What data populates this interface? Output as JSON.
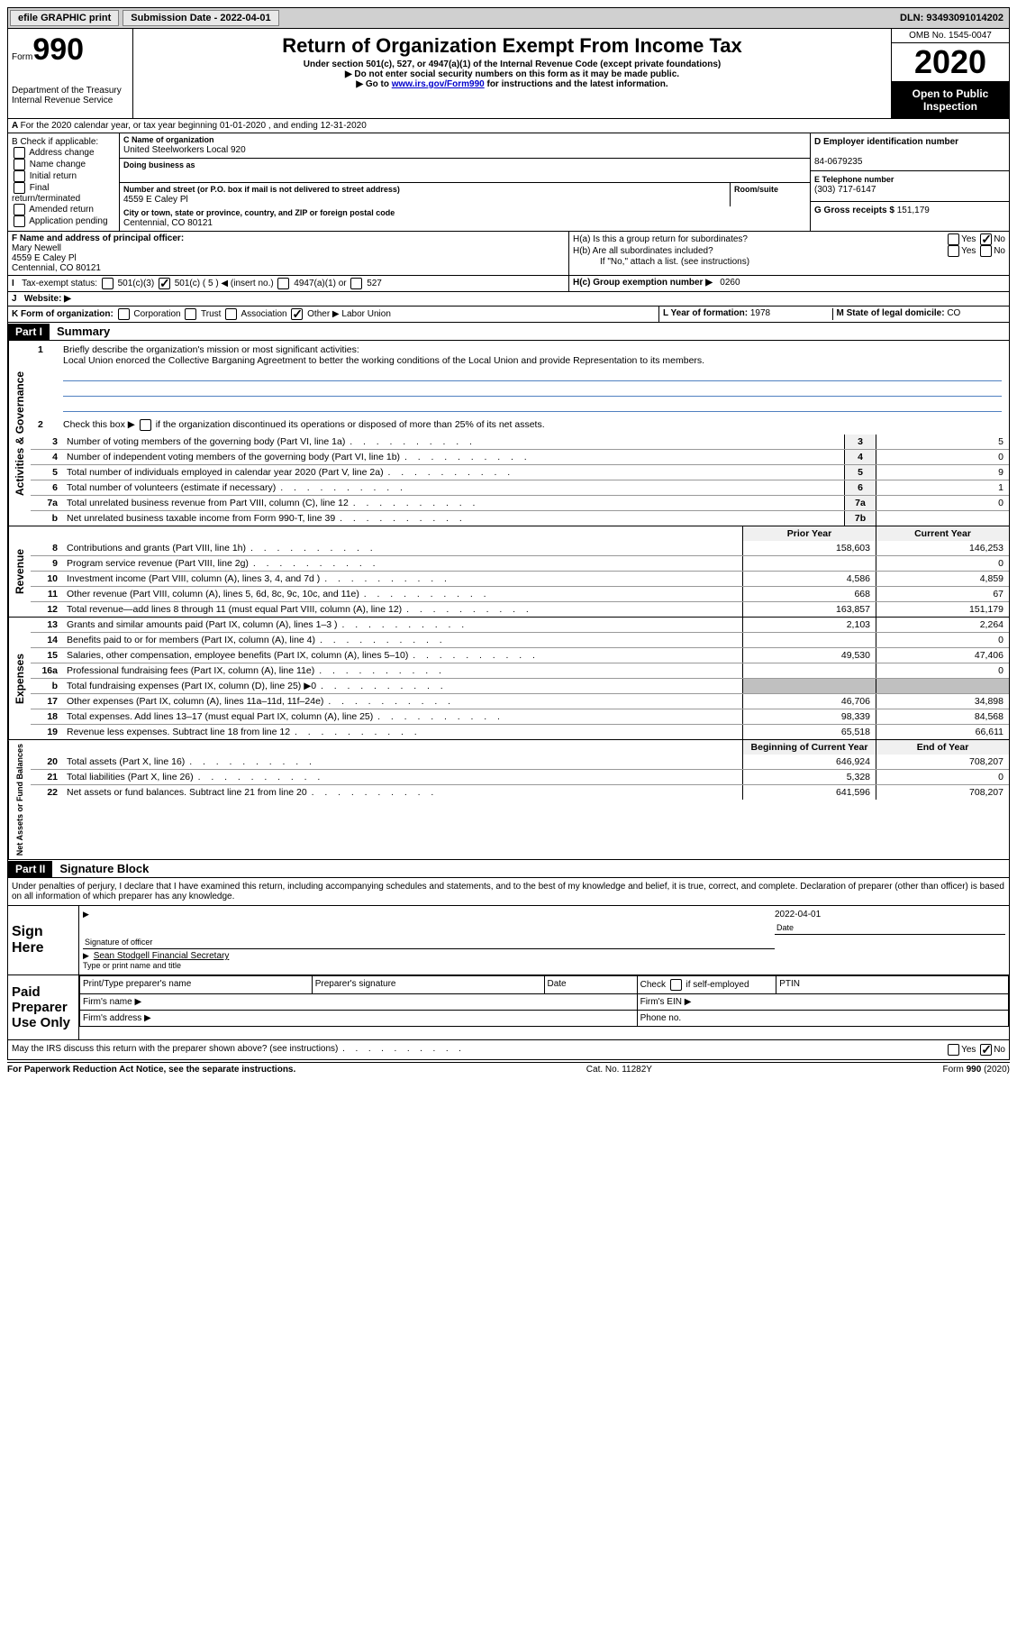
{
  "topbar": {
    "efile": "efile GRAPHIC print",
    "submission_label": "Submission Date - ",
    "submission_date": "2022-04-01",
    "dln_label": "DLN: ",
    "dln": "93493091014202"
  },
  "header": {
    "form_label": "Form",
    "form_no": "990",
    "dept1": "Department of the Treasury",
    "dept2": "Internal Revenue Service",
    "title": "Return of Organization Exempt From Income Tax",
    "subtitle1": "Under section 501(c), 527, or 4947(a)(1) of the Internal Revenue Code (except private foundations)",
    "subtitle2": "▶ Do not enter social security numbers on this form as it may be made public.",
    "subtitle3_pre": "▶ Go to ",
    "subtitle3_link": "www.irs.gov/Form990",
    "subtitle3_post": " for instructions and the latest information.",
    "omb": "OMB No. 1545-0047",
    "year": "2020",
    "inspect": "Open to Public Inspection"
  },
  "line_a": "For the 2020 calendar year, or tax year beginning 01-01-2020     , and ending 12-31-2020",
  "col_b": {
    "title": "B Check if applicable:",
    "opts": [
      "Address change",
      "Name change",
      "Initial return",
      "Final return/terminated",
      "Amended return",
      "Application pending"
    ]
  },
  "col_c": {
    "name_label": "C Name of organization",
    "name": "United Steelworkers Local 920",
    "dba_label": "Doing business as",
    "addr_label": "Number and street (or P.O. box if mail is not delivered to street address)",
    "room_label": "Room/suite",
    "addr": "4559 E Caley Pl",
    "city_label": "City or town, state or province, country, and ZIP or foreign postal code",
    "city": "Centennial, CO  80121"
  },
  "col_d": {
    "ein_label": "D Employer identification number",
    "ein": "84-0679235",
    "tel_label": "E Telephone number",
    "tel": "(303) 717-6147",
    "gross_label": "G Gross receipts $ ",
    "gross": "151,179"
  },
  "row_f": {
    "label": "F  Name and address of principal officer:",
    "name": "Mary Newell",
    "addr1": "4559 E Caley Pl",
    "addr2": "Centennial, CO  80121"
  },
  "row_h": {
    "ha": "H(a)  Is this a group return for subordinates?",
    "hb": "H(b)  Are all subordinates included?",
    "hb_note": "If \"No,\" attach a list. (see instructions)",
    "hc_label": "H(c)  Group exemption number ▶",
    "hc_val": "0260",
    "yes": "Yes",
    "no": "No"
  },
  "row_i": {
    "label": "Tax-exempt status:",
    "opt1": "501(c)(3)",
    "opt2": "501(c) ( 5 ) ◀ (insert no.)",
    "opt3": "4947(a)(1) or",
    "opt4": "527"
  },
  "row_j": {
    "label": "Website: ▶"
  },
  "row_k": {
    "label": "K Form of organization:",
    "opts": [
      "Corporation",
      "Trust",
      "Association",
      "Other ▶"
    ],
    "other_val": "Labor Union",
    "l_label": "L Year of formation: ",
    "l_val": "1978",
    "m_label": "M State of legal domicile: ",
    "m_val": "CO"
  },
  "part1": {
    "header": "Part I",
    "title": "Summary",
    "line1_label": "Briefly describe the organization's mission or most significant activities:",
    "mission": "Local Union enorced the Collective Barganing Agreetment to better the working conditions of the Local Union and provide Representation to its members.",
    "line2": "Check this box ▶         if the organization discontinued its operations or disposed of more than 25% of its net assets.",
    "governance_label": "Activities & Governance",
    "revenue_label": "Revenue",
    "expenses_label": "Expenses",
    "netassets_label": "Net Assets or Fund Balances",
    "prior_year": "Prior Year",
    "current_year": "Current Year",
    "begin_year": "Beginning of Current Year",
    "end_year": "End of Year",
    "lines_gov": [
      {
        "n": "3",
        "d": "Number of voting members of the governing body (Part VI, line 1a)",
        "box": "3",
        "v": "5"
      },
      {
        "n": "4",
        "d": "Number of independent voting members of the governing body (Part VI, line 1b)",
        "box": "4",
        "v": "0"
      },
      {
        "n": "5",
        "d": "Total number of individuals employed in calendar year 2020 (Part V, line 2a)",
        "box": "5",
        "v": "9"
      },
      {
        "n": "6",
        "d": "Total number of volunteers (estimate if necessary)",
        "box": "6",
        "v": "1"
      },
      {
        "n": "7a",
        "d": "Total unrelated business revenue from Part VIII, column (C), line 12",
        "box": "7a",
        "v": "0"
      },
      {
        "n": "b",
        "d": "Net unrelated business taxable income from Form 990-T, line 39",
        "box": "7b",
        "v": ""
      }
    ],
    "lines_rev": [
      {
        "n": "8",
        "d": "Contributions and grants (Part VIII, line 1h)",
        "p": "158,603",
        "c": "146,253"
      },
      {
        "n": "9",
        "d": "Program service revenue (Part VIII, line 2g)",
        "p": "",
        "c": "0"
      },
      {
        "n": "10",
        "d": "Investment income (Part VIII, column (A), lines 3, 4, and 7d )",
        "p": "4,586",
        "c": "4,859"
      },
      {
        "n": "11",
        "d": "Other revenue (Part VIII, column (A), lines 5, 6d, 8c, 9c, 10c, and 11e)",
        "p": "668",
        "c": "67"
      },
      {
        "n": "12",
        "d": "Total revenue—add lines 8 through 11 (must equal Part VIII, column (A), line 12)",
        "p": "163,857",
        "c": "151,179"
      }
    ],
    "lines_exp": [
      {
        "n": "13",
        "d": "Grants and similar amounts paid (Part IX, column (A), lines 1–3 )",
        "p": "2,103",
        "c": "2,264"
      },
      {
        "n": "14",
        "d": "Benefits paid to or for members (Part IX, column (A), line 4)",
        "p": "",
        "c": "0"
      },
      {
        "n": "15",
        "d": "Salaries, other compensation, employee benefits (Part IX, column (A), lines 5–10)",
        "p": "49,530",
        "c": "47,406"
      },
      {
        "n": "16a",
        "d": "Professional fundraising fees (Part IX, column (A), line 11e)",
        "p": "",
        "c": "0"
      },
      {
        "n": "b",
        "d": "Total fundraising expenses (Part IX, column (D), line 25) ▶0",
        "p": "shaded",
        "c": "shaded"
      },
      {
        "n": "17",
        "d": "Other expenses (Part IX, column (A), lines 11a–11d, 11f–24e)",
        "p": "46,706",
        "c": "34,898"
      },
      {
        "n": "18",
        "d": "Total expenses. Add lines 13–17 (must equal Part IX, column (A), line 25)",
        "p": "98,339",
        "c": "84,568"
      },
      {
        "n": "19",
        "d": "Revenue less expenses. Subtract line 18 from line 12",
        "p": "65,518",
        "c": "66,611"
      }
    ],
    "lines_net": [
      {
        "n": "20",
        "d": "Total assets (Part X, line 16)",
        "p": "646,924",
        "c": "708,207"
      },
      {
        "n": "21",
        "d": "Total liabilities (Part X, line 26)",
        "p": "5,328",
        "c": "0"
      },
      {
        "n": "22",
        "d": "Net assets or fund balances. Subtract line 21 from line 20",
        "p": "641,596",
        "c": "708,207"
      }
    ]
  },
  "part2": {
    "header": "Part II",
    "title": "Signature Block",
    "penalty": "Under penalties of perjury, I declare that I have examined this return, including accompanying schedules and statements, and to the best of my knowledge and belief, it is true, correct, and complete. Declaration of preparer (other than officer) is based on all information of which preparer has any knowledge.",
    "sign_here": "Sign Here",
    "sig_officer": "Signature of officer",
    "sig_date": "Date",
    "sig_date_val": "2022-04-01",
    "sig_name": "Sean Stodgell Financial Secretary",
    "sig_type": "Type or print name and title",
    "paid_prep": "Paid Preparer Use Only",
    "prep_name": "Print/Type preparer's name",
    "prep_sig": "Preparer's signature",
    "prep_date": "Date",
    "prep_self": "Check         if self-employed",
    "prep_ptin": "PTIN",
    "firm_name": "Firm's name    ▶",
    "firm_ein": "Firm's EIN ▶",
    "firm_addr": "Firm's address ▶",
    "firm_phone": "Phone no."
  },
  "footer": {
    "discuss": "May the IRS discuss this return with the preparer shown above? (see instructions)",
    "paperwork": "For Paperwork Reduction Act Notice, see the separate instructions.",
    "cat": "Cat. No. 11282Y",
    "form": "Form 990 (2020)",
    "yes": "Yes",
    "no": "No"
  }
}
